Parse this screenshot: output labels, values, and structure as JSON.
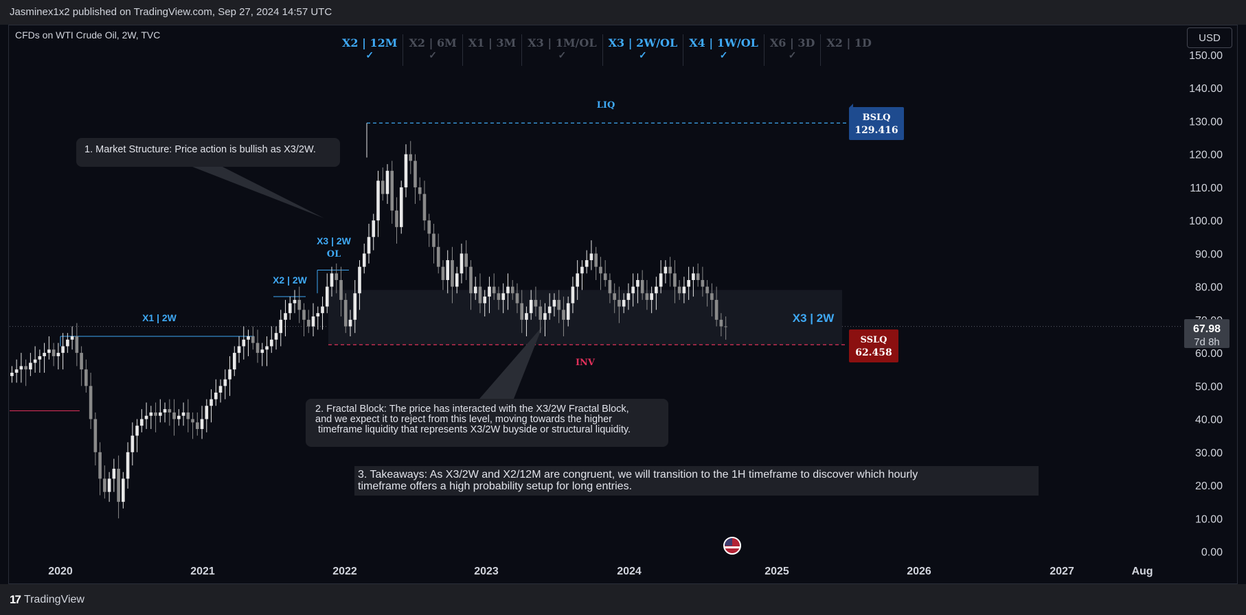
{
  "header": {
    "published": "Jasminex1x2 published on TradingView.com, Sep 27, 2024 14:57 UTC"
  },
  "symbol": "CFDs on WTI Crude Oil, 2W, TVC",
  "currency_button": "USD",
  "timeframes": [
    {
      "label": "X2 | 12M",
      "checked": true,
      "active": true
    },
    {
      "label": "X2 | 6M",
      "checked": true,
      "active": false
    },
    {
      "label": "X1 | 3M",
      "checked": false,
      "active": false
    },
    {
      "label": "X3 | 1M/OL",
      "checked": true,
      "active": false
    },
    {
      "label": "X3 | 2W/OL",
      "checked": true,
      "active": true
    },
    {
      "label": "X4 | 1W/OL",
      "checked": true,
      "active": true
    },
    {
      "label": "X6 | 3D",
      "checked": true,
      "active": false
    },
    {
      "label": "X2 | 1D",
      "checked": false,
      "active": false
    }
  ],
  "check_glyph": "✓",
  "notes": {
    "market_structure": "1. Market Structure: Price action is bullish as X3/2W.",
    "fractal_block": [
      "2. Fractal Block: The price has interacted with the X3/2W Fractal Block,",
      "and we expect it to reject from this level, moving towards the higher",
      "timeframe liquidity that represents X3/2W buyside or structural liquidity."
    ],
    "takeaways": [
      "3. Takeaways: As X3/2W and X2/12M are congruent, we will transition to the 1H timeframe to discover which hourly",
      "timeframe offers a high probability setup for long entries."
    ]
  },
  "annotations": {
    "liq": "LIQ",
    "inv": "INV",
    "x1_2w": "X1 | 2W",
    "x2_2w": "X2 | 2W",
    "x3_2w": "X3 | 2W",
    "ol": "OL",
    "x3_2w_block": "X3 | 2W"
  },
  "tags": {
    "bslq": {
      "label": "BSLQ",
      "value": "129.416"
    },
    "sslq": {
      "label": "SSLQ",
      "value": "62.458"
    },
    "last_price": "67.98",
    "countdown": "7d 8h"
  },
  "branding": "TradingView",
  "colors": {
    "background": "#0a0c14",
    "accent_blue": "#3fa9f5",
    "bslq_bg": "#1e4b8f",
    "sslq_bg": "#8b1010",
    "inv_red": "#e0305a",
    "candle_up": "#e8e8e8",
    "candle_down": "#8a8a8a"
  },
  "chart_data": {
    "type": "candlestick",
    "x_axis": {
      "tick_labels": [
        "2020",
        "2021",
        "2022",
        "2023",
        "2024",
        "2025",
        "2026",
        "2027",
        "Aug"
      ]
    },
    "y_axis": {
      "tick_labels": [
        "0.00",
        "10.00",
        "20.00",
        "30.00",
        "40.00",
        "50.00",
        "60.00",
        "70.00",
        "80.00",
        "90.00",
        "100.00",
        "110.00",
        "120.00",
        "130.00",
        "140.00",
        "150.00"
      ],
      "range": [
        0,
        152
      ],
      "position": "right"
    },
    "levels": {
      "bslq": 129.416,
      "sslq": 62.458,
      "last": 67.98,
      "fractal_block": [
        62.458,
        79
      ]
    },
    "candles_close": [
      54,
      55,
      56,
      55,
      57,
      58,
      59,
      60,
      61,
      59,
      60,
      62,
      64,
      65,
      60,
      55,
      50,
      40,
      30,
      22,
      18,
      22,
      25,
      15,
      22,
      30,
      35,
      38,
      40,
      41,
      42,
      41,
      42,
      43,
      42,
      40,
      41,
      42,
      40,
      39,
      37,
      40,
      44,
      46,
      48,
      50,
      52,
      55,
      60,
      62,
      64,
      65,
      63,
      60,
      61,
      62,
      64,
      66,
      70,
      72,
      75,
      76,
      73,
      70,
      68,
      71,
      72,
      74,
      80,
      84,
      82,
      76,
      68,
      70,
      78,
      86,
      90,
      95,
      100,
      112,
      108,
      115,
      103,
      98,
      110,
      120,
      118,
      110,
      108,
      100,
      96,
      92,
      86,
      82,
      88,
      80,
      84,
      90,
      86,
      78,
      80,
      75,
      77,
      80,
      78,
      76,
      78,
      80,
      78,
      75,
      70,
      72,
      76,
      74,
      70,
      72,
      74,
      76,
      73,
      70,
      75,
      80,
      84,
      86,
      88,
      90,
      86,
      84,
      82,
      78,
      76,
      74,
      76,
      78,
      80,
      82,
      78,
      76,
      78,
      80,
      84,
      86,
      84,
      80,
      78,
      80,
      82,
      84,
      82,
      80,
      78,
      76,
      70,
      68,
      67.98
    ],
    "x_dates_range": [
      "2019-10",
      "2027-08"
    ]
  }
}
